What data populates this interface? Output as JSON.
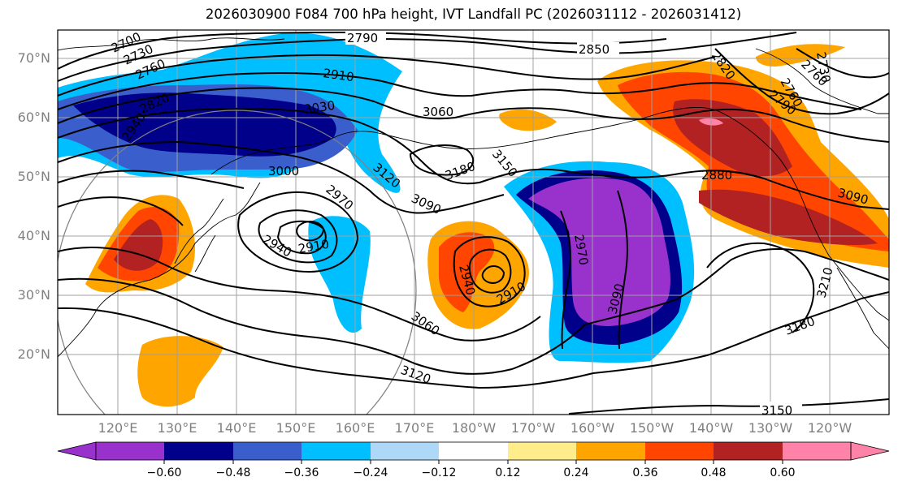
{
  "title": "2026030900 F084 700 hPa height, IVT Landfall PC (2026031112 - 2026031412)",
  "latitude_labels": [
    "70°N",
    "60°N",
    "50°N",
    "40°N",
    "30°N",
    "20°N"
  ],
  "longitude_labels": [
    "120°E",
    "130°E",
    "140°E",
    "150°E",
    "160°E",
    "170°E",
    "180°W",
    "170°W",
    "160°W",
    "150°W",
    "140°W",
    "130°W",
    "120°W"
  ],
  "colorbar": {
    "tick_labels": [
      "−0.60",
      "−0.48",
      "−0.36",
      "−0.24",
      "−0.12",
      "0.12",
      "0.24",
      "0.36",
      "0.48",
      "0.60"
    ],
    "colors": [
      "#9932cc",
      "#00008b",
      "#3a5fcd",
      "#00bfff",
      "#add8f7",
      "#ffffff",
      "#ffec8b",
      "#ffa500",
      "#ff4500",
      "#b22222",
      "#ff83a9"
    ]
  },
  "contour_labels": [
    "2790",
    "2850",
    "2790",
    "2820",
    "2760",
    "2730",
    "2700",
    "2760",
    "2820",
    "2910",
    "3030",
    "3060",
    "3150",
    "3120",
    "3180",
    "3090",
    "3000",
    "2970",
    "2940",
    "2910",
    "2940",
    "2940",
    "2910",
    "2970",
    "3090",
    "2880",
    "3090",
    "3060",
    "3120",
    "3180",
    "3210",
    "3150",
    "2730",
    "2760"
  ],
  "colors": {
    "text": "#000000",
    "axis_label": "#808080",
    "contour": "#000000",
    "grid": "#a0a0a0"
  }
}
